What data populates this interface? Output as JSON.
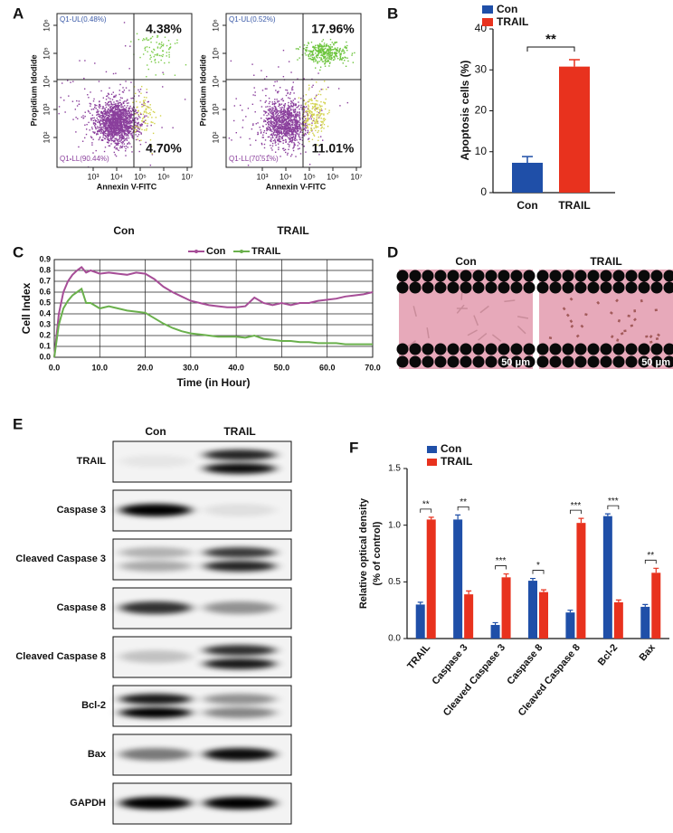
{
  "panel_labels": [
    "A",
    "B",
    "C",
    "D",
    "E",
    "F"
  ],
  "flow": {
    "x_label": "Annexin V-FITC",
    "y_label": "Propidium Idodide",
    "x_ticks": [
      "10³",
      "10⁴",
      "10⁵",
      "10⁶",
      "10⁷"
    ],
    "y_ticks": [
      "10⁶",
      "10⁵",
      "10⁴",
      "10³",
      "10²"
    ],
    "plots": [
      {
        "name": "Con",
        "ul": "Q1-UL(0.48%)",
        "ur": "4.38%",
        "lr": "4.70%",
        "ll": "Q1-LL(90.44%)"
      },
      {
        "name": "TRAIL",
        "ul": "Q1-UL(0.52%)",
        "ur": "17.96%",
        "lr": "11.01%",
        "ll": "Q1-LL(70.51%)"
      }
    ]
  },
  "images": {
    "titles": [
      "Con",
      "TRAIL"
    ],
    "scale_bar": "50 μm"
  },
  "blot": {
    "columns": [
      "Con",
      "TRAIL"
    ],
    "rows": [
      "TRAIL",
      "Caspase 3",
      "Cleaved Caspase 3",
      "Caspase 8",
      "Cleaved Caspase 8",
      "Bcl-2",
      "Bax",
      "GAPDH"
    ]
  },
  "chart_data": [
    {
      "type": "bar",
      "y_label": "Apoptosis cells (%)",
      "categories": [
        "Con",
        "TRAIL"
      ],
      "values": [
        7.3,
        30.8
      ],
      "errors": [
        1.5,
        1.7
      ],
      "colors": [
        "#1f4fa8",
        "#e8321e"
      ],
      "ylim": [
        0,
        40
      ],
      "yticks": [
        0,
        10,
        20,
        30,
        40
      ],
      "significance": "**",
      "legend": "top-left"
    },
    {
      "type": "line",
      "x_label": "Time (in Hour)",
      "y_label": "Cell Index",
      "x": [
        0,
        1,
        2,
        3,
        4,
        5,
        6,
        7,
        8,
        10,
        12,
        14,
        16,
        18,
        20,
        22,
        24,
        26,
        28,
        30,
        32,
        34,
        36,
        38,
        40,
        42,
        44,
        46,
        48,
        50,
        52,
        54,
        56,
        58,
        60,
        62,
        64,
        66,
        68,
        70
      ],
      "series": [
        {
          "name": "Con",
          "color": "#a64d97",
          "values": [
            0,
            0.4,
            0.6,
            0.7,
            0.76,
            0.8,
            0.83,
            0.78,
            0.8,
            0.77,
            0.78,
            0.77,
            0.76,
            0.78,
            0.77,
            0.72,
            0.65,
            0.6,
            0.56,
            0.52,
            0.5,
            0.48,
            0.47,
            0.46,
            0.46,
            0.47,
            0.55,
            0.5,
            0.48,
            0.5,
            0.48,
            0.5,
            0.5,
            0.52,
            0.53,
            0.54,
            0.56,
            0.57,
            0.58,
            0.6
          ]
        },
        {
          "name": "TRAIL",
          "color": "#6ab04c",
          "values": [
            0,
            0.3,
            0.45,
            0.52,
            0.57,
            0.6,
            0.63,
            0.5,
            0.5,
            0.45,
            0.47,
            0.45,
            0.43,
            0.42,
            0.41,
            0.36,
            0.31,
            0.27,
            0.24,
            0.22,
            0.21,
            0.2,
            0.19,
            0.19,
            0.19,
            0.18,
            0.2,
            0.17,
            0.16,
            0.15,
            0.15,
            0.14,
            0.14,
            0.13,
            0.13,
            0.13,
            0.12,
            0.12,
            0.12,
            0.12
          ]
        }
      ],
      "xlim": [
        0,
        70
      ],
      "xticks": [
        {
          "value": 0,
          "label": "0.0"
        },
        {
          "value": 10,
          "label": "10.0"
        },
        {
          "value": 20,
          "label": "20.0"
        },
        {
          "value": 30,
          "label": "30.0"
        },
        {
          "value": 40,
          "label": "40.0"
        },
        {
          "value": 50,
          "label": "50.0"
        },
        {
          "value": 60,
          "label": "60.0"
        },
        {
          "value": 70,
          "label": "70.0"
        }
      ],
      "ylim": [
        0,
        0.9
      ],
      "yticks": [
        {
          "value": 0,
          "label": "0.0"
        },
        0.1,
        0.2,
        0.3,
        0.4,
        0.5,
        0.6,
        0.7,
        0.8,
        0.9
      ],
      "grid": true,
      "legend": "top"
    },
    {
      "type": "grouped_bar",
      "y_label": [
        "Relative optical density",
        "(% of control)"
      ],
      "categories": [
        "TRAIL",
        "Caspase 3",
        "Cleaved Caspase 3",
        "Caspase 8",
        "Cleaved Caspase 8",
        "Bcl-2",
        "Bax"
      ],
      "series": [
        {
          "name": "Con",
          "color": "#1f4fa8",
          "values": [
            0.3,
            1.05,
            0.12,
            0.51,
            0.23,
            1.08,
            0.28
          ],
          "errors": [
            0.02,
            0.04,
            0.02,
            0.02,
            0.02,
            0.02,
            0.02
          ]
        },
        {
          "name": "TRAIL",
          "color": "#e8321e",
          "values": [
            1.05,
            0.39,
            0.54,
            0.41,
            1.02,
            0.32,
            0.58
          ],
          "errors": [
            0.02,
            0.03,
            0.03,
            0.02,
            0.04,
            0.02,
            0.04
          ]
        }
      ],
      "significance": [
        "**",
        "**",
        "***",
        "*",
        "***",
        "***",
        "**"
      ],
      "ylim": [
        0,
        1.5
      ],
      "yticks": [
        {
          "value": 0,
          "label": "0.0"
        },
        0.5,
        {
          "value": 1,
          "label": "1.0"
        },
        1.5
      ],
      "legend": "top-left"
    }
  ]
}
